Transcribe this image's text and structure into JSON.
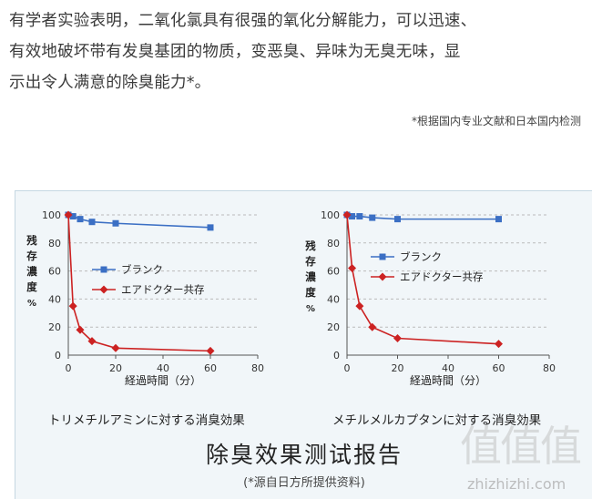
{
  "intro": {
    "line1": "有学者实验表明，二氧化氯具有很强的氧化分解能力，可以迅速、",
    "line2": "有效地破坏带有发臭基团的物质，变恶臭、异味为无臭无味，显",
    "line3": "示出令人满意的除臭能力*。"
  },
  "footnote": "*根据国内专业文献和日本国内检测",
  "report": {
    "title": "除臭效果测试报告",
    "source": "(*源自日方所提供资料)"
  },
  "watermark": {
    "logo": "值值值",
    "url": "zhizhizhi.com"
  },
  "colors": {
    "blue": "#3b6fc4",
    "red": "#cc2222",
    "grid": "#bbbbbb",
    "panel": "#f1f6f9"
  },
  "chart_data": [
    {
      "type": "line",
      "title": "トリメチルアミンに対する消臭効果",
      "xlabel": "経過時間（分）",
      "ylabel": [
        "残",
        "存",
        "濃",
        "度",
        "%"
      ],
      "xlim": [
        0,
        80
      ],
      "ylim": [
        0,
        100
      ],
      "xticks": [
        0,
        20,
        40,
        60,
        80
      ],
      "yticks": [
        0,
        20,
        40,
        60,
        80,
        100
      ],
      "grid": true,
      "legend": "middle",
      "series": [
        {
          "name": "ブランク",
          "color": "#3b6fc4",
          "marker": "square",
          "x": [
            0,
            2,
            5,
            10,
            20,
            60
          ],
          "y": [
            100,
            99,
            97,
            95,
            94,
            91
          ]
        },
        {
          "name": "エアドクター共存",
          "color": "#cc2222",
          "marker": "diamond",
          "x": [
            0,
            2,
            5,
            10,
            20,
            60
          ],
          "y": [
            100,
            35,
            18,
            10,
            5,
            3
          ]
        }
      ]
    },
    {
      "type": "line",
      "title": "メチルメルカプタンに対する消臭効果",
      "xlabel": "経過時間（分）",
      "ylabel": [
        "残",
        "存",
        "濃",
        "度",
        "%"
      ],
      "xlim": [
        0,
        80
      ],
      "ylim": [
        0,
        100
      ],
      "xticks": [
        0,
        20,
        40,
        60,
        80
      ],
      "yticks": [
        0,
        20,
        40,
        60,
        80,
        100
      ],
      "grid": true,
      "legend": "middle",
      "series": [
        {
          "name": "ブランク",
          "color": "#3b6fc4",
          "marker": "square",
          "x": [
            0,
            2,
            5,
            10,
            20,
            60
          ],
          "y": [
            100,
            99,
            99,
            98,
            97,
            97
          ]
        },
        {
          "name": "エアドクター共存",
          "color": "#cc2222",
          "marker": "diamond",
          "x": [
            0,
            2,
            5,
            10,
            20,
            60
          ],
          "y": [
            100,
            62,
            35,
            20,
            12,
            8
          ]
        }
      ]
    }
  ]
}
